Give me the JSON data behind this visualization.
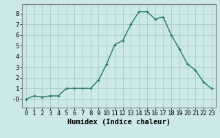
{
  "x": [
    0,
    1,
    2,
    3,
    4,
    5,
    6,
    7,
    8,
    9,
    10,
    11,
    12,
    13,
    14,
    15,
    16,
    17,
    18,
    19,
    20,
    21,
    22,
    23
  ],
  "y": [
    0.0,
    0.3,
    0.2,
    0.3,
    0.3,
    1.0,
    1.0,
    1.0,
    1.0,
    1.8,
    3.3,
    5.1,
    5.5,
    7.0,
    8.2,
    8.2,
    7.5,
    7.7,
    6.0,
    4.7,
    3.3,
    2.7,
    1.6,
    1.0
  ],
  "line_color": "#2e7d6e",
  "marker": "+",
  "marker_size": 3.5,
  "bg_color": "#cce8e8",
  "grid_color": "#b0cece",
  "axis_color": "#808080",
  "xlabel": "Humidex (Indice chaleur)",
  "xlabel_fontsize": 7.5,
  "ylabel_ticks": [
    0,
    1,
    2,
    3,
    4,
    5,
    6,
    7,
    8
  ],
  "ytick_labels": [
    "-0",
    "1",
    "2",
    "3",
    "4",
    "5",
    "6",
    "7",
    "8"
  ],
  "xlim": [
    -0.5,
    23.5
  ],
  "ylim": [
    -0.8,
    8.9
  ],
  "tick_fontsize": 6.5,
  "line_width": 1.1
}
